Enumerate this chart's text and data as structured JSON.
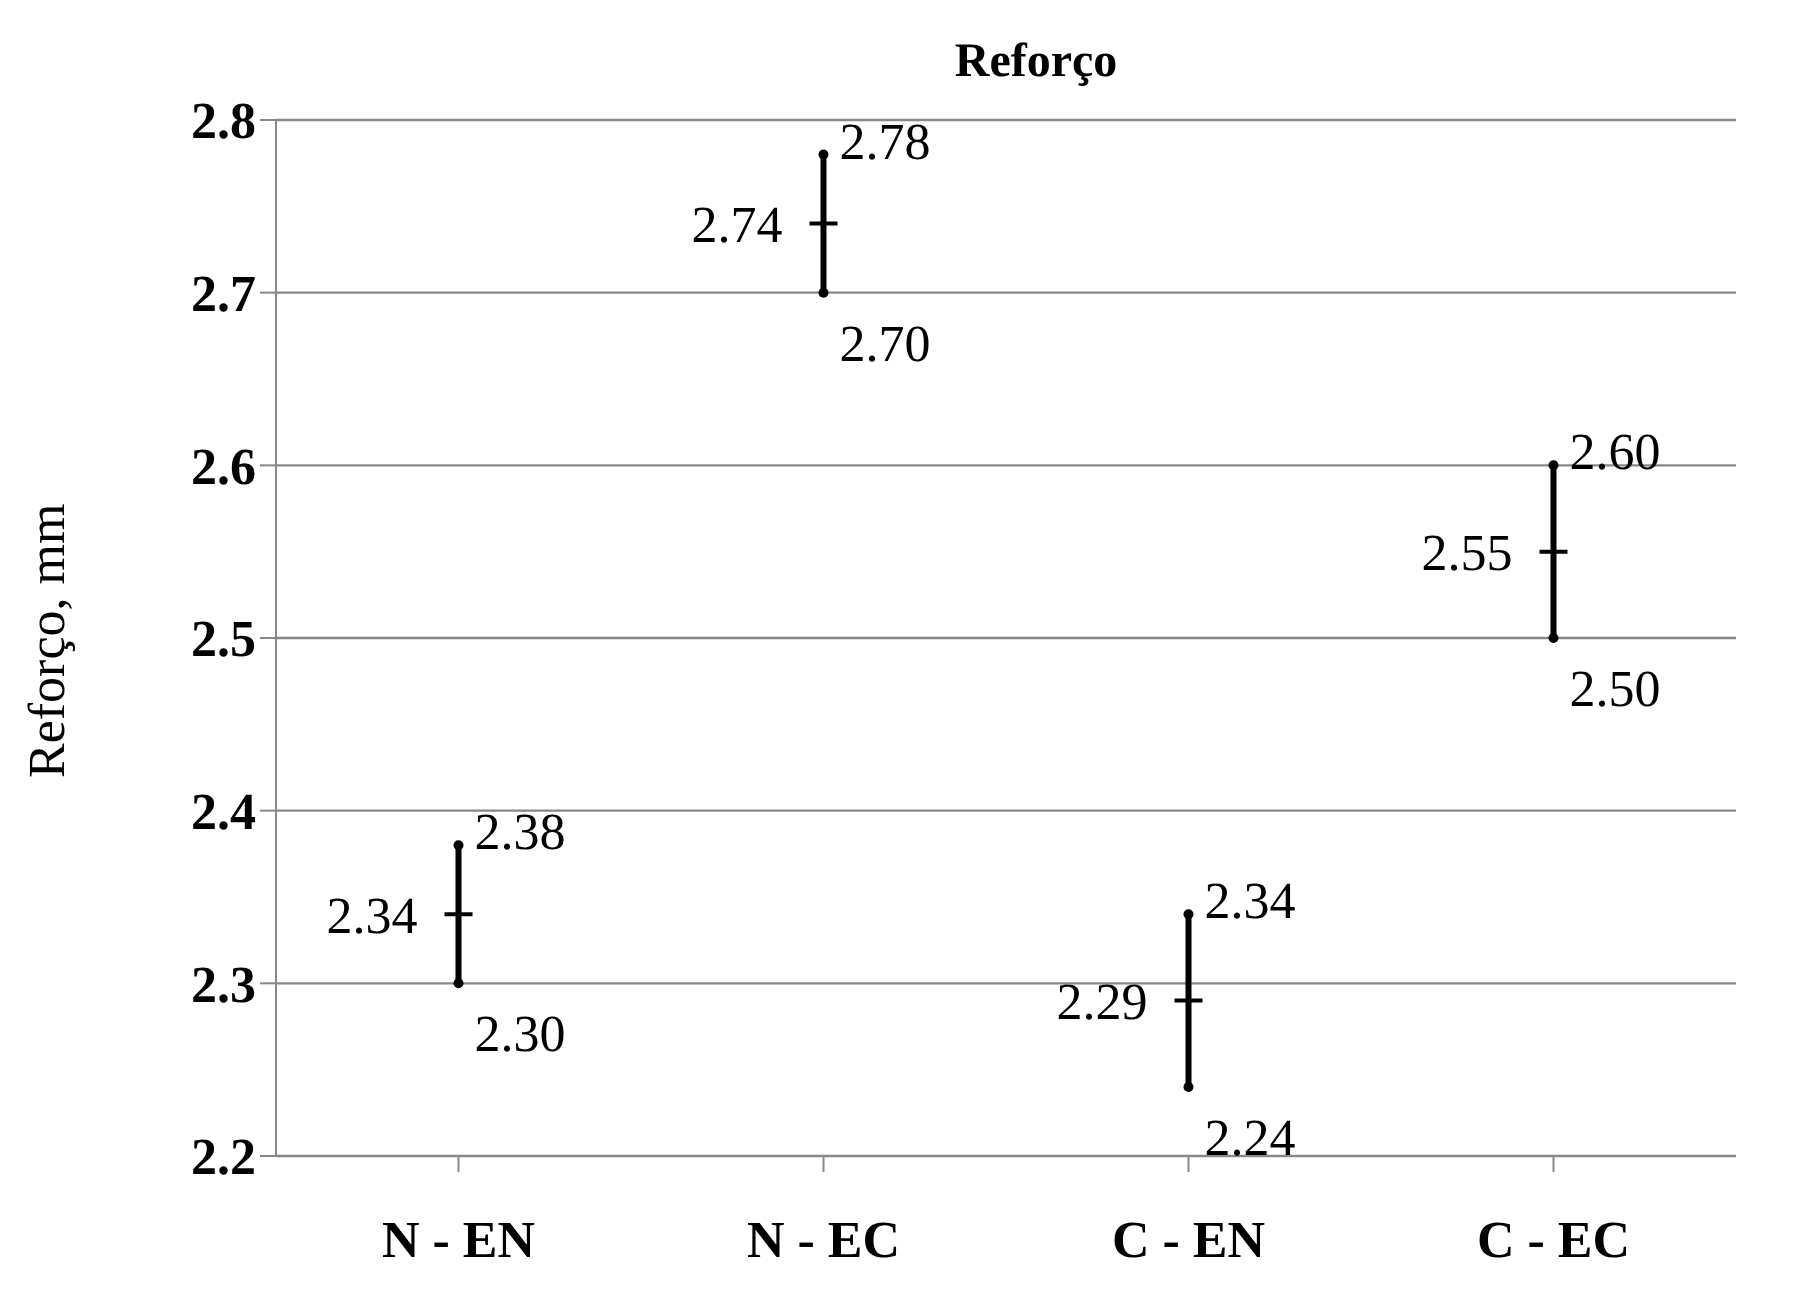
{
  "chart_data": {
    "type": "scatter",
    "title": "Reforço",
    "ylabel": "Reforço, mm",
    "categories": [
      "N - EN",
      "N - EC",
      "C - EN",
      "C - EC"
    ],
    "values": [
      2.34,
      2.74,
      2.29,
      2.55
    ],
    "errors": [
      [
        2.3,
        2.38
      ],
      [
        2.7,
        2.78
      ],
      [
        2.24,
        2.34
      ],
      [
        2.5,
        2.6
      ]
    ],
    "color": "#000000",
    "marker": "cross",
    "data_labels": true,
    "ylim": [
      2.2,
      2.8
    ],
    "yticks": [
      2.2,
      2.3,
      2.4,
      2.5,
      2.6,
      2.7,
      2.8
    ],
    "grid": "y",
    "legend": false,
    "annotations": [
      {
        "text": "2.38",
        "x": "N - EN",
        "y": 2.38
      },
      {
        "text": "2.30",
        "x": "N - EN",
        "y": 2.3
      },
      {
        "text": "2.78",
        "x": "N - EC",
        "y": 2.78
      },
      {
        "text": "2.70",
        "x": "N - EC",
        "y": 2.7
      },
      {
        "text": "2.34",
        "x": "C - EN",
        "y": 2.34
      },
      {
        "text": "2.24",
        "x": "C - EN",
        "y": 2.24
      },
      {
        "text": "2.60",
        "x": "C - EC",
        "y": 2.6
      },
      {
        "text": "2.50",
        "x": "C - EC",
        "y": 2.5
      }
    ]
  }
}
